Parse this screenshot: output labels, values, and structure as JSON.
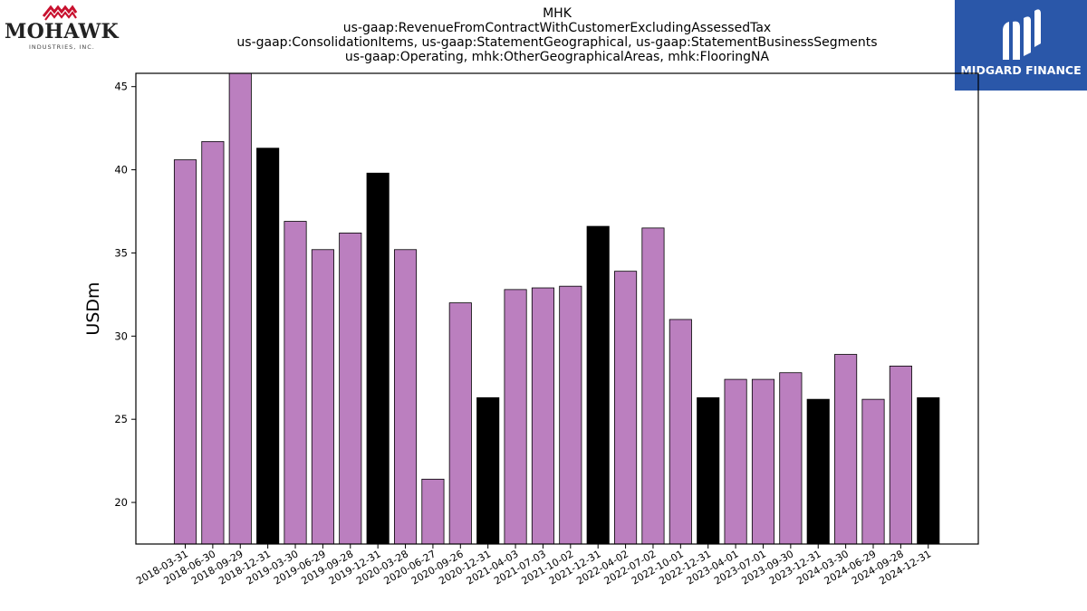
{
  "header": {
    "title_lines": [
      "MHK",
      "us-gaap:RevenueFromContractWithCustomerExcludingAssessedTax",
      "us-gaap:ConsolidationItems, us-gaap:StatementGeographical, us-gaap:StatementBusinessSegments",
      "us-gaap:Operating, mhk:OtherGeographicalAreas, mhk:FlooringNA"
    ]
  },
  "logos": {
    "left": {
      "name": "MOHAWK",
      "subtitle": "INDUSTRIES, INC.",
      "accent": "#c8102e"
    },
    "right": {
      "name": "MIDGARD FINANCE",
      "background": "#2a57a9"
    }
  },
  "colors": {
    "quarter_bar": "#bb7fbf",
    "year_end_bar": "#000000"
  },
  "chart_data": {
    "type": "bar",
    "ylabel": "USDm",
    "xlabel": "",
    "ylim": [
      17.5,
      45.8
    ],
    "yticks": [
      20,
      25,
      30,
      35,
      40,
      45
    ],
    "grid": false,
    "categories": [
      "2018-03-31",
      "2018-06-30",
      "2018-09-29",
      "2018-12-31",
      "2019-03-30",
      "2019-06-29",
      "2019-09-28",
      "2019-12-31",
      "2020-03-28",
      "2020-06-27",
      "2020-09-26",
      "2020-12-31",
      "2021-04-03",
      "2021-07-03",
      "2021-10-02",
      "2021-12-31",
      "2022-04-02",
      "2022-07-02",
      "2022-10-01",
      "2022-12-31",
      "2023-04-01",
      "2023-07-01",
      "2023-09-30",
      "2023-12-31",
      "2024-03-30",
      "2024-06-29",
      "2024-09-28",
      "2024-12-31"
    ],
    "values": [
      40.6,
      41.7,
      45.8,
      41.3,
      36.9,
      35.2,
      36.2,
      39.8,
      35.2,
      21.4,
      32.0,
      26.3,
      32.8,
      32.9,
      33.0,
      36.6,
      33.9,
      36.5,
      31.0,
      26.3,
      27.4,
      27.4,
      27.8,
      26.2,
      28.9,
      26.2,
      28.2,
      26.3
    ],
    "year_end": [
      false,
      false,
      false,
      true,
      false,
      false,
      false,
      true,
      false,
      false,
      false,
      true,
      false,
      false,
      false,
      true,
      false,
      false,
      false,
      true,
      false,
      false,
      false,
      true,
      false,
      false,
      false,
      true
    ]
  }
}
